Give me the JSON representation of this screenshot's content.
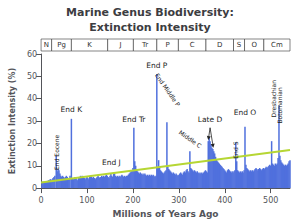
{
  "chart_data": {
    "type": "bar",
    "title": "Marine Genus Biodiversity:",
    "subtitle": "Extinction Intensity",
    "xlabel": "Millions of Years Ago",
    "ylabel": "Extinction Intensity (%)",
    "xlim": [
      0,
      542
    ],
    "xticks": [
      0,
      100,
      200,
      300,
      400,
      500
    ],
    "ylim": [
      0,
      60
    ],
    "yticks": [
      0,
      10,
      20,
      30,
      40,
      50,
      60
    ],
    "grid": false,
    "series": [
      {
        "type": "bar",
        "x": [
          2,
          4,
          6,
          8,
          10,
          12,
          14,
          16,
          18,
          20,
          22,
          24,
          26,
          28,
          30,
          33,
          35,
          37,
          39,
          41,
          43,
          45,
          47,
          49,
          51,
          53,
          55,
          57,
          59,
          61,
          63,
          66,
          68,
          70,
          72,
          74,
          76,
          78,
          80,
          82,
          84,
          86,
          88,
          90,
          92,
          94,
          96,
          98,
          100,
          102,
          104,
          106,
          108,
          110,
          112,
          114,
          116,
          118,
          120,
          122,
          124,
          126,
          128,
          130,
          132,
          134,
          136,
          138,
          140,
          142,
          144,
          146,
          148,
          150,
          152,
          154,
          156,
          158,
          160,
          162,
          164,
          166,
          168,
          170,
          172,
          174,
          176,
          178,
          180,
          182,
          184,
          186,
          188,
          190,
          192,
          194,
          196,
          198,
          200,
          202,
          204,
          206,
          208,
          210,
          212,
          214,
          216,
          218,
          220,
          222,
          224,
          226,
          228,
          230,
          232,
          234,
          236,
          238,
          240,
          242,
          244,
          246,
          248,
          250,
          252,
          254,
          256,
          258,
          260,
          262,
          264,
          266,
          268,
          270,
          272,
          274,
          276,
          278,
          280,
          282,
          284,
          286,
          288,
          290,
          292,
          294,
          296,
          298,
          300,
          302,
          304,
          306,
          308,
          310,
          312,
          314,
          316,
          318,
          320,
          322,
          324,
          326,
          328,
          330,
          332,
          334,
          336,
          338,
          340,
          342,
          344,
          346,
          348,
          350,
          352,
          354,
          356,
          358,
          360,
          362,
          364,
          366,
          368,
          370,
          372,
          374,
          376,
          378,
          380,
          382,
          384,
          386,
          388,
          390,
          392,
          394,
          396,
          398,
          400,
          402,
          404,
          406,
          408,
          410,
          412,
          414,
          416,
          418,
          420,
          422,
          424,
          426,
          428,
          430,
          432,
          434,
          436,
          438,
          440,
          442,
          444,
          446,
          448,
          450,
          452,
          454,
          456,
          458,
          460,
          462,
          464,
          466,
          468,
          470,
          472,
          474,
          476,
          478,
          480,
          482,
          484,
          486,
          488,
          490,
          492,
          494,
          496,
          498,
          500,
          502,
          504,
          506,
          508,
          510,
          512,
          514,
          516,
          518,
          520,
          522,
          524,
          526,
          528,
          530,
          532,
          534,
          536,
          538,
          540,
          542
        ],
        "values": [
          2.5,
          2.8,
          2.5,
          2.8,
          3.0,
          3.2,
          3.0,
          3.5,
          3.5,
          4.0,
          3.5,
          4.0,
          4.5,
          5.0,
          5.5,
          14.5,
          7.5,
          8.5,
          8.0,
          6.5,
          5.5,
          5.0,
          5.5,
          5.0,
          4.5,
          5.0,
          5.5,
          5.0,
          4.5,
          4.0,
          5.5,
          31.0,
          4.5,
          4.0,
          4.5,
          5.0,
          4.5,
          4.0,
          3.5,
          4.5,
          5.0,
          5.5,
          5.0,
          5.5,
          5.0,
          4.5,
          4.0,
          4.5,
          5.0,
          4.5,
          4.0,
          5.0,
          5.5,
          5.0,
          4.5,
          5.0,
          4.5,
          4.0,
          4.5,
          5.0,
          5.5,
          5.0,
          4.5,
          5.0,
          5.5,
          5.0,
          5.5,
          5.0,
          5.5,
          6.0,
          5.5,
          5.0,
          4.5,
          5.5,
          6.5,
          5.5,
          5.0,
          7.0,
          6.5,
          5.5,
          5.0,
          5.5,
          5.0,
          5.5,
          5.0,
          5.5,
          6.0,
          5.5,
          5.0,
          5.5,
          5.0,
          5.5,
          5.5,
          6.0,
          6.5,
          7.0,
          7.5,
          8.0,
          9.0,
          27.0,
          12.0,
          10.0,
          8.0,
          7.5,
          7.0,
          6.5,
          7.0,
          6.5,
          6.0,
          6.5,
          6.0,
          6.5,
          6.0,
          5.5,
          6.0,
          5.5,
          6.0,
          5.5,
          6.0,
          5.5,
          6.0,
          5.5,
          5.0,
          5.5,
          51.0,
          9.0,
          12.5,
          9.0,
          8.0,
          7.5,
          7.0,
          6.5,
          7.0,
          7.5,
          8.0,
          29.5,
          9.5,
          8.5,
          8.0,
          7.5,
          7.0,
          6.5,
          7.0,
          6.5,
          6.0,
          6.5,
          6.0,
          5.5,
          6.0,
          6.5,
          7.0,
          6.5,
          6.0,
          7.0,
          7.5,
          7.0,
          8.0,
          8.5,
          7.5,
          7.0,
          16.5,
          9.0,
          8.5,
          8.0,
          7.5,
          8.0,
          7.5,
          7.0,
          7.5,
          7.0,
          6.5,
          7.0,
          6.5,
          7.0,
          6.5,
          7.0,
          7.5,
          8.0,
          7.5,
          7.0,
          21.0,
          23.0,
          21.0,
          19.5,
          18.0,
          17.5,
          16.5,
          15.5,
          14.0,
          13.0,
          12.0,
          11.5,
          11.0,
          10.5,
          10.0,
          9.5,
          9.0,
          8.5,
          8.0,
          7.5,
          7.0,
          8.0,
          8.5,
          8.0,
          7.5,
          7.0,
          7.5,
          7.0,
          7.5,
          8.0,
          20.5,
          12.0,
          8.0,
          7.5,
          7.0,
          7.5,
          7.0,
          7.5,
          7.0,
          8.0,
          27.5,
          10.5,
          9.0,
          8.5,
          8.0,
          7.5,
          8.0,
          7.5,
          8.0,
          7.5,
          8.0,
          8.5,
          9.0,
          8.5,
          8.0,
          8.5,
          9.0,
          8.5,
          8.0,
          8.5,
          9.0,
          8.5,
          9.0,
          9.5,
          9.0,
          9.5,
          10.0,
          10.5,
          10.0,
          21.0,
          11.0,
          10.5,
          10.0,
          11.0,
          10.5,
          11.0,
          13.5,
          37.0,
          14.5,
          12.5,
          11.5,
          11.0,
          10.5,
          10.0,
          10.5,
          10.0,
          10.5,
          11.0,
          12.0,
          12.5
        ]
      },
      {
        "type": "line",
        "x": [
          0,
          542
        ],
        "values": [
          2.5,
          17.0
        ]
      }
    ],
    "periods": [
      {
        "name": "N",
        "start": 0,
        "end": 23
      },
      {
        "name": "Pg",
        "start": 23,
        "end": 66
      },
      {
        "name": "K",
        "start": 66,
        "end": 145
      },
      {
        "name": "J",
        "start": 145,
        "end": 201
      },
      {
        "name": "Tr",
        "start": 201,
        "end": 252
      },
      {
        "name": "P",
        "start": 252,
        "end": 299
      },
      {
        "name": "C",
        "start": 299,
        "end": 359
      },
      {
        "name": "D",
        "start": 359,
        "end": 419
      },
      {
        "name": "S",
        "start": 419,
        "end": 443
      },
      {
        "name": "O",
        "start": 443,
        "end": 485
      },
      {
        "name": "Cm",
        "start": 485,
        "end": 542
      }
    ],
    "annotations": [
      {
        "text": "End K",
        "x": 66,
        "y": 33.5
      },
      {
        "text": "End Eocene",
        "x": 33,
        "y": 16
      },
      {
        "text": "End J",
        "x": 153,
        "y": 9.5
      },
      {
        "text": "End Tr",
        "x": 202,
        "y": 29
      },
      {
        "text": "End P",
        "x": 252,
        "y": 53
      },
      {
        "text": "End Middle P",
        "x": 276,
        "y": 44
      },
      {
        "text": "Middle C",
        "x": 325,
        "y": 22
      },
      {
        "text": "Late D",
        "x": 368,
        "y": 29
      },
      {
        "text": "End S",
        "x": 424,
        "y": 17
      },
      {
        "text": "End O",
        "x": 444,
        "y": 32
      },
      {
        "text": "Dresbachian",
        "x": 507,
        "y": 40
      },
      {
        "text": "Botomanian",
        "x": 520,
        "y": 37
      }
    ],
    "arrows": [
      {
        "x": 368,
        "y": 27,
        "to_x": 364,
        "to_y": 21.5
      },
      {
        "x": 368,
        "y": 27,
        "to_x": 375,
        "to_y": 18.0
      }
    ]
  }
}
